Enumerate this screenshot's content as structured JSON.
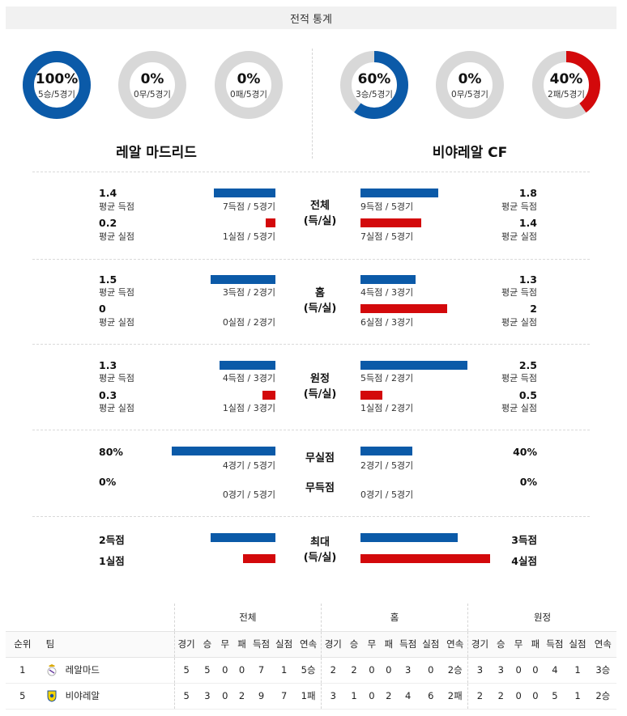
{
  "header": {
    "title": "전적 통계"
  },
  "colors": {
    "blue": "#0b5aa8",
    "red": "#d3090b",
    "track": "#d8d8d8"
  },
  "teams": {
    "home": {
      "name": "레알 마드리드",
      "donuts": [
        {
          "pct": "100%",
          "sub": "5승/5경기",
          "fraction": 1.0,
          "color": "#0b5aa8"
        },
        {
          "pct": "0%",
          "sub": "0무/5경기",
          "fraction": 0.0,
          "color": "#0b5aa8"
        },
        {
          "pct": "0%",
          "sub": "0패/5경기",
          "fraction": 0.0,
          "color": "#d3090b"
        }
      ]
    },
    "away": {
      "name": "비야레알 CF",
      "donuts": [
        {
          "pct": "60%",
          "sub": "3승/5경기",
          "fraction": 0.6,
          "color": "#0b5aa8"
        },
        {
          "pct": "0%",
          "sub": "0무/5경기",
          "fraction": 0.0,
          "color": "#0b5aa8"
        },
        {
          "pct": "40%",
          "sub": "2패/5경기",
          "fraction": 0.4,
          "color": "#d3090b"
        }
      ]
    }
  },
  "sections": {
    "total": {
      "label1": "전체",
      "label2": "(득/실)",
      "home": {
        "avg_for": "1.4",
        "avg_for_label": "평균 득점",
        "avg_against": "0.2",
        "avg_against_label": "평균 실점",
        "for_caption": "7득점 / 5경기",
        "against_caption": "1실점 / 5경기"
      },
      "away": {
        "avg_for": "1.8",
        "avg_for_label": "평균 득점",
        "avg_against": "1.4",
        "avg_against_label": "평균 실점",
        "for_caption": "9득점 / 5경기",
        "against_caption": "7실점 / 5경기"
      }
    },
    "home": {
      "label1": "홈",
      "label2": "(득/실)",
      "home": {
        "avg_for": "1.5",
        "avg_for_label": "평균 득점",
        "avg_against": "0",
        "avg_against_label": "평균 실점",
        "for_caption": "3득점 / 2경기",
        "against_caption": "0실점 / 2경기"
      },
      "away": {
        "avg_for": "1.3",
        "avg_for_label": "평균 득점",
        "avg_against": "2",
        "avg_against_label": "평균 실점",
        "for_caption": "4득점 / 3경기",
        "against_caption": "6실점 / 3경기"
      }
    },
    "away": {
      "label1": "원정",
      "label2": "(득/실)",
      "home": {
        "avg_for": "1.3",
        "avg_for_label": "평균 득점",
        "avg_against": "0.3",
        "avg_against_label": "평균 실점",
        "for_caption": "4득점 / 3경기",
        "against_caption": "1실점 / 3경기"
      },
      "away": {
        "avg_for": "2.5",
        "avg_for_label": "평균 득점",
        "avg_against": "0.5",
        "avg_against_label": "평균 실점",
        "for_caption": "5득점 / 2경기",
        "against_caption": "1실점 / 2경기"
      }
    },
    "clean": {
      "label_clean": "무실점",
      "label_noscore": "무득점",
      "home": {
        "clean_pct": "80%",
        "clean_caption": "4경기 / 5경기",
        "noscore_pct": "0%",
        "noscore_caption": "0경기 / 5경기"
      },
      "away": {
        "clean_pct": "40%",
        "clean_caption": "2경기 / 5경기",
        "noscore_pct": "0%",
        "noscore_caption": "0경기 / 5경기"
      }
    },
    "max": {
      "label1": "최대",
      "label2": "(득/실)",
      "home": {
        "max_for": "2득점",
        "max_against": "1실점"
      },
      "away": {
        "max_for": "3득점",
        "max_against": "4실점"
      }
    }
  },
  "standings": {
    "groups": [
      "전체",
      "홈",
      "원정"
    ],
    "columns": {
      "rank": "순위",
      "team": "팀",
      "stats": [
        "경기",
        "승",
        "무",
        "패",
        "득점",
        "실점",
        "연속"
      ]
    },
    "rows": [
      {
        "rank": "1",
        "team": "레알마드",
        "crest": "real-madrid-crest-icon",
        "total": [
          "5",
          "5",
          "0",
          "0",
          "7",
          "1",
          "5승"
        ],
        "home": [
          "2",
          "2",
          "0",
          "0",
          "3",
          "0",
          "2승"
        ],
        "away": [
          "3",
          "3",
          "0",
          "0",
          "4",
          "1",
          "3승"
        ]
      },
      {
        "rank": "5",
        "team": "비야레알",
        "crest": "villarreal-crest-icon",
        "total": [
          "5",
          "3",
          "0",
          "2",
          "9",
          "7",
          "1패"
        ],
        "home": [
          "3",
          "1",
          "0",
          "2",
          "4",
          "6",
          "2패"
        ],
        "away": [
          "2",
          "2",
          "0",
          "0",
          "5",
          "1",
          "2승"
        ]
      }
    ]
  }
}
